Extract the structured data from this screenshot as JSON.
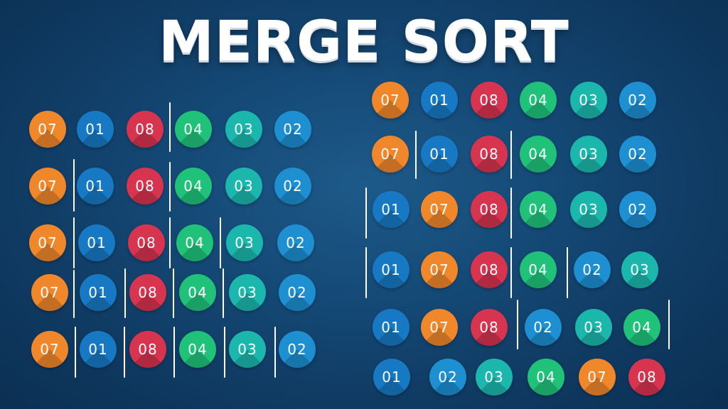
{
  "title": "MERGE SORT",
  "colors": {
    "07": "orange",
    "01": "blue",
    "08": "red",
    "04": "green",
    "03": "teal",
    "02": "sky"
  },
  "left_panel": {
    "rows": [
      [
        "07",
        "01",
        "08",
        "04",
        "03",
        "02"
      ],
      [
        "07",
        "01",
        "08",
        "04",
        "03",
        "02"
      ],
      [
        "07",
        "01",
        "08",
        "04",
        "03",
        "02"
      ],
      [
        "07",
        "01",
        "08",
        "04",
        "03",
        "02"
      ],
      [
        "07",
        "01",
        "08",
        "04",
        "03",
        "02"
      ]
    ]
  },
  "right_panel": {
    "rows": [
      [
        "07",
        "01",
        "08",
        "04",
        "03",
        "02"
      ],
      [
        "07",
        "01",
        "08",
        "04",
        "03",
        "02"
      ],
      [
        "01",
        "07",
        "08",
        "04",
        "03",
        "02"
      ],
      [
        "01",
        "07",
        "08",
        "04",
        "02",
        "03"
      ],
      [
        "01",
        "07",
        "08",
        "02",
        "03",
        "04"
      ],
      [
        "01",
        "02",
        "03",
        "04",
        "07",
        "08"
      ]
    ]
  }
}
